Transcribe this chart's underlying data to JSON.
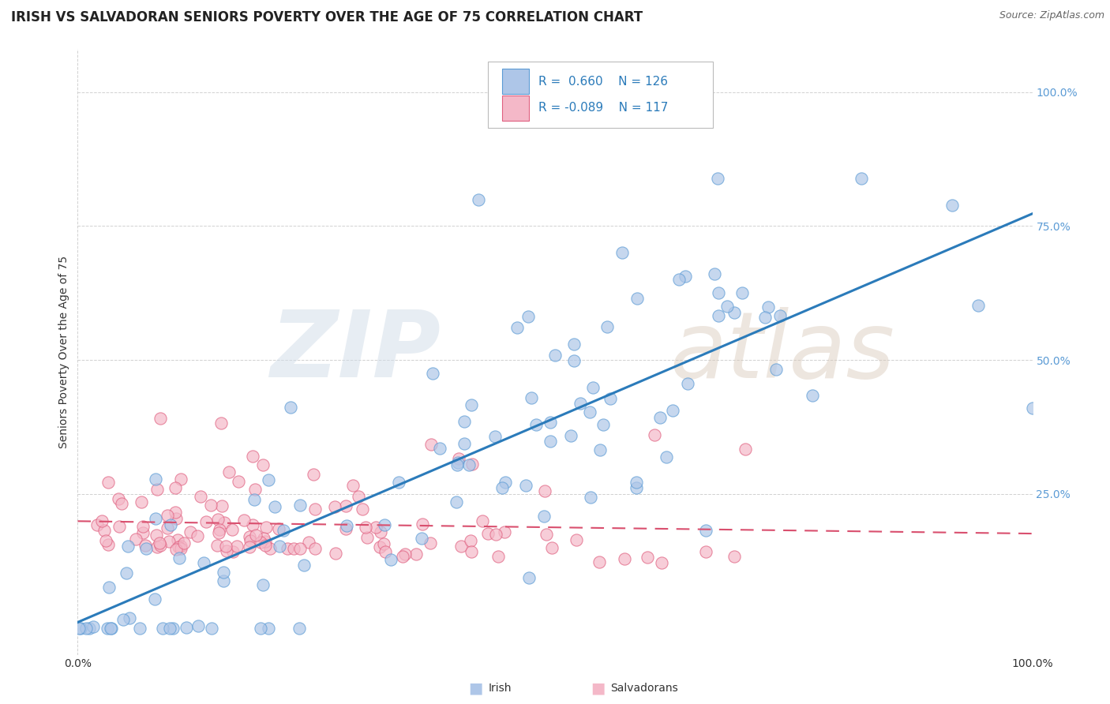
{
  "title": "IRISH VS SALVADORAN SENIORS POVERTY OVER THE AGE OF 75 CORRELATION CHART",
  "source": "Source: ZipAtlas.com",
  "ylabel": "Seniors Poverty Over the Age of 75",
  "watermark_zip": "ZIP",
  "watermark_atlas": "atlas",
  "irish_R": 0.66,
  "irish_N": 126,
  "salv_R": -0.089,
  "salv_N": 117,
  "irish_color": "#aec6e8",
  "irish_edge": "#5b9bd5",
  "salv_color": "#f4b8c8",
  "salv_edge": "#e06080",
  "irish_line_color": "#2b7bba",
  "salv_line_color": "#d94f6e",
  "background_color": "#ffffff",
  "grid_color": "#cccccc",
  "right_tick_color": "#5b9bd5",
  "title_fontsize": 12,
  "axis_label_fontsize": 10,
  "tick_fontsize": 10,
  "legend_R_color": "#2b7bba",
  "legend_R_text": "R =  0.660   N = 126",
  "legend_R2_text": "R = -0.089   N = 117"
}
